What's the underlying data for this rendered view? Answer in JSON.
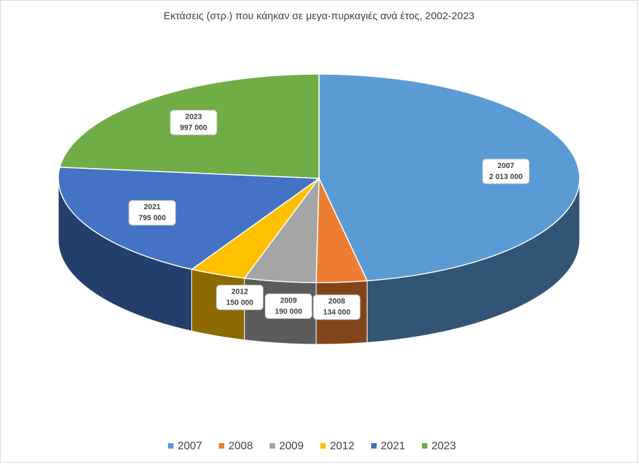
{
  "chart_data": {
    "type": "pie3d",
    "title": "Εκτάσεις (στρ.) που κάηκαν σε μεγα-πυρκαγιές ανά έτος, 2002-2023",
    "categories": [
      "2007",
      "2008",
      "2009",
      "2012",
      "2021",
      "2023"
    ],
    "values": [
      2013000,
      134000,
      190000,
      150000,
      795000,
      997000
    ],
    "value_labels": [
      "2 013 000",
      "134 000",
      "190 000",
      "150 000",
      "795 000",
      "997 000"
    ],
    "colors": [
      "#5b9bd5",
      "#ed7d31",
      "#a5a5a5",
      "#ffc000",
      "#4472c4",
      "#70ad47"
    ],
    "legend": "bottom"
  }
}
